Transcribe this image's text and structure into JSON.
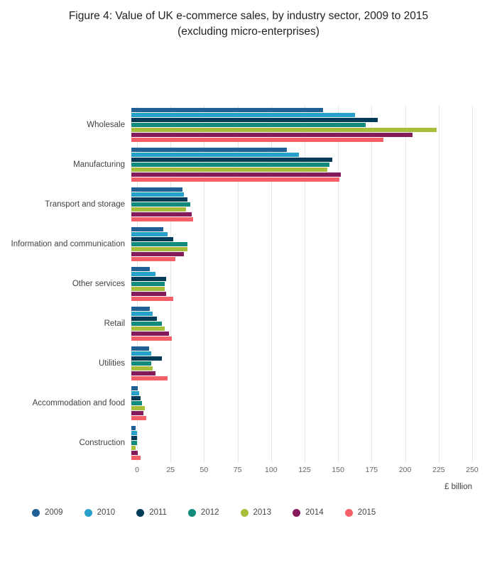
{
  "title": {
    "line1": "Figure 4: Value of UK e-commerce sales, by industry sector, 2009 to 2015",
    "line2": "(excluding micro-enterprises)"
  },
  "chart_data": {
    "type": "bar",
    "orientation": "horizontal",
    "title": "Figure 4: Value of UK e-commerce sales, by industry sector, 2009 to 2015 (excluding micro-enterprises)",
    "categories": [
      "Wholesale",
      "Manufacturing",
      "Transport and storage",
      "Information and communication",
      "Other services",
      "Retail",
      "Utilities",
      "Accommodation and food",
      "Construction"
    ],
    "series": [
      {
        "name": "2009",
        "color": "#206095",
        "values": [
          143,
          116,
          38,
          24,
          14,
          14,
          13,
          5,
          3
        ]
      },
      {
        "name": "2010",
        "color": "#27A0CC",
        "values": [
          167,
          125,
          39,
          27,
          18,
          16,
          15,
          6,
          4
        ]
      },
      {
        "name": "2011",
        "color": "#003C57",
        "values": [
          184,
          150,
          42,
          31,
          26,
          19,
          23,
          7,
          4
        ]
      },
      {
        "name": "2012",
        "color": "#118C7B",
        "values": [
          175,
          148,
          44,
          42,
          25,
          23,
          15,
          8,
          4
        ]
      },
      {
        "name": "2013",
        "color": "#A8BD3A",
        "values": [
          228,
          146,
          41,
          42,
          25,
          25,
          16,
          10,
          3
        ]
      },
      {
        "name": "2014",
        "color": "#871A5B",
        "values": [
          210,
          156,
          45,
          39,
          26,
          28,
          18,
          9,
          5
        ]
      },
      {
        "name": "2015",
        "color": "#F66068",
        "values": [
          188,
          155,
          46,
          33,
          31,
          30,
          27,
          11,
          7
        ]
      }
    ],
    "xlabel": "£ billion",
    "xlim": [
      0,
      250
    ],
    "xticks": [
      0,
      25,
      50,
      75,
      100,
      125,
      150,
      175,
      200,
      225,
      250
    ],
    "grid": true,
    "legend_position": "bottom"
  }
}
